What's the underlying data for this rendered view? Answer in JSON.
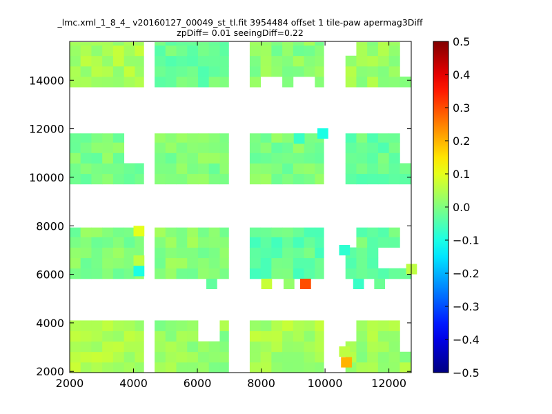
{
  "chart_data": {
    "type": "heatmap",
    "title": "_lmc.xml_1_8_4_ v20160127_00049_st_tl.fit 3954484 offset 1 tile-paw apermag3Diff",
    "subtitle": "zpDiff= 0.01 seeingDiff=0.22",
    "xlabel": "",
    "ylabel": "",
    "xlim": [
      2000,
      12700
    ],
    "ylim": [
      1950,
      15600
    ],
    "x_ticks": [
      2000,
      4000,
      6000,
      8000,
      10000,
      12000
    ],
    "y_ticks": [
      2000,
      4000,
      6000,
      8000,
      10000,
      12000,
      14000
    ],
    "colorbar": {
      "colormap": "jet",
      "vmin": -0.5,
      "vmax": 0.5,
      "ticks": [
        0.5,
        0.4,
        0.3,
        0.2,
        0.1,
        0.0,
        -0.1,
        -0.2,
        -0.3,
        -0.4,
        -0.5
      ],
      "tick_labels": [
        "0.5",
        "0.4",
        "0.3",
        "0.2",
        "0.1",
        "0.0",
        "−0.1",
        "−0.2",
        "−0.3",
        "−0.4",
        "−0.5"
      ]
    },
    "cell_width": 340,
    "cell_height": 430,
    "detector_blocks": [
      {
        "x": [
          2000,
          4320
        ],
        "y": [
          13720,
          15570
        ],
        "base": 0.04
      },
      {
        "x": [
          4660,
          6980
        ],
        "y": [
          13720,
          15570
        ],
        "base": -0.02
      },
      {
        "x": [
          7640,
          9960
        ],
        "y": [
          13720,
          15570
        ],
        "base": 0.01
      },
      {
        "x": [
          10640,
          12700
        ],
        "y": [
          13720,
          15570
        ],
        "base": 0.03
      },
      {
        "x": [
          2000,
          4320
        ],
        "y": [
          9720,
          11810
        ],
        "base": 0.0
      },
      {
        "x": [
          4660,
          6980
        ],
        "y": [
          9720,
          11810
        ],
        "base": 0.0
      },
      {
        "x": [
          7640,
          9960
        ],
        "y": [
          9720,
          11810
        ],
        "base": 0.0
      },
      {
        "x": [
          10640,
          12700
        ],
        "y": [
          9720,
          11810
        ],
        "base": -0.02
      },
      {
        "x": [
          2000,
          4320
        ],
        "y": [
          5820,
          7930
        ],
        "base": 0.0
      },
      {
        "x": [
          4660,
          6980
        ],
        "y": [
          5820,
          7930
        ],
        "base": 0.01
      },
      {
        "x": [
          7640,
          9960
        ],
        "y": [
          5820,
          7930
        ],
        "base": -0.03
      },
      {
        "x": [
          10640,
          12700
        ],
        "y": [
          5820,
          7930
        ],
        "base": -0.02
      },
      {
        "x": [
          2000,
          4320
        ],
        "y": [
          1950,
          4100
        ],
        "base": 0.05
      },
      {
        "x": [
          4660,
          6980
        ],
        "y": [
          1950,
          4100
        ],
        "base": 0.02
      },
      {
        "x": [
          7640,
          9960
        ],
        "y": [
          1950,
          4100
        ],
        "base": 0.04
      },
      {
        "x": [
          10640,
          12700
        ],
        "y": [
          1950,
          4100
        ],
        "base": 0.03
      }
    ],
    "highlight_cells": [
      {
        "x": 9220,
        "y": 5390,
        "value": 0.3
      },
      {
        "x": 10500,
        "y": 2160,
        "value": 0.2
      },
      {
        "x": 4000,
        "y": 7570,
        "value": 0.1
      },
      {
        "x": 4000,
        "y": 6350,
        "value": 0.06
      },
      {
        "x": 4000,
        "y": 5920,
        "value": -0.1
      },
      {
        "x": 9760,
        "y": 11590,
        "value": -0.1
      },
      {
        "x": 10440,
        "y": 6780,
        "value": -0.08
      },
      {
        "x": 10440,
        "y": 2600,
        "value": 0.06
      },
      {
        "x": 8000,
        "y": 5390,
        "value": 0.07
      },
      {
        "x": 6280,
        "y": 5390,
        "value": -0.03
      },
      {
        "x": 8700,
        "y": 5390,
        "value": 0.02
      },
      {
        "x": 10880,
        "y": 5390,
        "value": -0.07
      },
      {
        "x": 11540,
        "y": 5390,
        "value": -0.02
      },
      {
        "x": 12540,
        "y": 6000,
        "value": 0.06
      },
      {
        "x": 9020,
        "y": 11380,
        "value": -0.07
      }
    ],
    "masked_cells": [
      {
        "x": 4000,
        "y": 11390
      },
      {
        "x": 4000,
        "y": 10960
      },
      {
        "x": 4000,
        "y": 8170
      },
      {
        "x": 4000,
        "y": 5000
      },
      {
        "x": 6210,
        "y": 3420
      },
      {
        "x": 10640,
        "y": 15350
      },
      {
        "x": 12360,
        "y": 15350
      },
      {
        "x": 12360,
        "y": 14920
      },
      {
        "x": 12360,
        "y": 14490
      },
      {
        "x": 12360,
        "y": 11170
      },
      {
        "x": 12360,
        "y": 10740
      },
      {
        "x": 12360,
        "y": 7700
      },
      {
        "x": 12360,
        "y": 7270
      },
      {
        "x": 12360,
        "y": 6840
      },
      {
        "x": 12360,
        "y": 6410
      },
      {
        "x": 11920,
        "y": 6410
      },
      {
        "x": 10640,
        "y": 7700
      },
      {
        "x": 10640,
        "y": 7270
      },
      {
        "x": 8030,
        "y": 13720
      },
      {
        "x": 9200,
        "y": 13720
      },
      {
        "x": 10640,
        "y": 3660
      },
      {
        "x": 12360,
        "y": 3660
      },
      {
        "x": 12360,
        "y": 3230
      }
    ]
  }
}
